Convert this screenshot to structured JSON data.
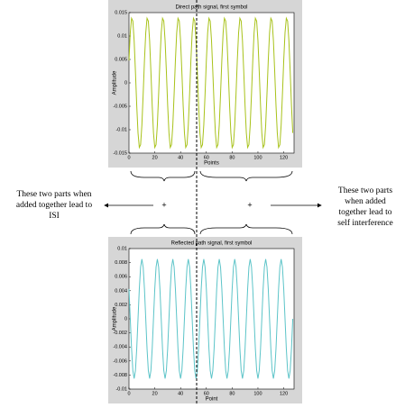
{
  "chart_data": [
    {
      "type": "line",
      "title": "Direct path signal, first symbol",
      "x_label": "Points",
      "y_label": "Amplitude",
      "xlim": [
        0,
        128
      ],
      "xticks": [
        0,
        20,
        40,
        60,
        80,
        100,
        120
      ],
      "ylim": [
        -0.015,
        0.015
      ],
      "yticks": [
        -0.015,
        -0.01,
        -0.005,
        0,
        0.005,
        0.01,
        0.015
      ],
      "x": [
        0,
        1,
        2,
        3,
        4,
        5,
        6,
        7,
        8,
        9,
        10,
        11,
        12,
        13,
        14,
        15,
        16,
        17,
        18,
        19,
        20,
        21,
        22,
        23,
        24,
        25,
        26,
        27,
        28,
        29,
        30,
        31,
        32,
        33,
        34,
        35,
        36,
        37,
        38,
        39,
        40,
        41,
        42,
        43,
        44,
        45,
        46,
        47,
        48,
        49,
        50,
        51,
        52,
        53,
        54,
        55,
        56,
        57,
        58,
        59,
        60,
        61,
        62,
        63,
        64,
        65,
        66,
        67,
        68,
        69,
        70,
        71,
        72,
        73,
        74,
        75,
        76,
        77,
        78,
        79,
        80,
        81,
        82,
        83,
        84,
        85,
        86,
        87,
        88,
        89,
        90,
        91,
        92,
        93,
        94,
        95,
        96,
        97,
        98,
        99,
        100,
        101,
        102,
        103,
        104,
        105,
        106,
        107,
        108,
        109,
        110,
        111,
        112,
        113,
        114,
        115,
        116,
        117,
        118,
        119,
        120,
        121,
        122,
        123,
        124,
        125,
        126,
        127
      ],
      "series": [
        {
          "color": "#a8c21a",
          "values": [
            0.0048,
            0.0107,
            0.0138,
            0.0132,
            0.009,
            0.0024,
            -0.0048,
            -0.0107,
            -0.0138,
            -0.0132,
            -0.009,
            -0.0024,
            0.0048,
            0.0107,
            0.0138,
            0.0132,
            0.009,
            0.0024,
            -0.0048,
            -0.0107,
            -0.0138,
            -0.0132,
            -0.009,
            -0.0024,
            0.0048,
            0.0107,
            0.0138,
            0.0132,
            0.009,
            0.0024,
            -0.0048,
            -0.0107,
            -0.0138,
            -0.0132,
            -0.009,
            -0.0024,
            0.0048,
            0.0107,
            0.0138,
            0.0132,
            0.009,
            0.0024,
            -0.0048,
            -0.0107,
            -0.0138,
            -0.0132,
            -0.009,
            -0.0024,
            0.0048,
            0.0107,
            0.0138,
            0.0132,
            0.009,
            0.0024,
            -0.0048,
            -0.0107,
            -0.0138,
            -0.0132,
            -0.009,
            -0.0024,
            0.0048,
            0.0107,
            0.0138,
            0.0132,
            0.009,
            0.0024,
            -0.0048,
            -0.0107,
            -0.0138,
            -0.0132,
            -0.009,
            -0.0024,
            0.0048,
            0.0107,
            0.0138,
            0.0132,
            0.009,
            0.0024,
            -0.0048,
            -0.0107,
            -0.0138,
            -0.0132,
            -0.009,
            -0.0024,
            0.0048,
            0.0107,
            0.0138,
            0.0132,
            0.009,
            0.0024,
            -0.0048,
            -0.0107,
            -0.0138,
            -0.0132,
            -0.009,
            -0.0024,
            0.0048,
            0.0107,
            0.0138,
            0.0132,
            0.009,
            0.0024,
            -0.0048,
            -0.0107,
            -0.0138,
            -0.0132,
            -0.009,
            -0.0024,
            0.0048,
            0.0107,
            0.0138,
            0.0132,
            0.009,
            0.0024,
            -0.0048,
            -0.0107,
            -0.0138,
            -0.0132,
            -0.009,
            -0.0024,
            0.0048,
            0.0107,
            0.0138,
            0.0132,
            0.009,
            0.0024,
            -0.0048,
            -0.0107
          ]
        }
      ]
    },
    {
      "type": "line",
      "title": "Reflected path signal, first symbol",
      "x_label": "Point",
      "y_label": "Amplitude",
      "xlim": [
        0,
        128
      ],
      "xticks": [
        0,
        20,
        40,
        60,
        80,
        100,
        120
      ],
      "ylim": [
        -0.01,
        0.01
      ],
      "yticks": [
        -0.01,
        -0.008,
        -0.006,
        -0.004,
        -0.002,
        0,
        0.002,
        0.004,
        0.006,
        0.008,
        0.01
      ],
      "x": [
        0,
        1,
        2,
        3,
        4,
        5,
        6,
        7,
        8,
        9,
        10,
        11,
        12,
        13,
        14,
        15,
        16,
        17,
        18,
        19,
        20,
        21,
        22,
        23,
        24,
        25,
        26,
        27,
        28,
        29,
        30,
        31,
        32,
        33,
        34,
        35,
        36,
        37,
        38,
        39,
        40,
        41,
        42,
        43,
        44,
        45,
        46,
        47,
        48,
        49,
        50,
        51,
        52,
        53,
        54,
        55,
        56,
        57,
        58,
        59,
        60,
        61,
        62,
        63,
        64,
        65,
        66,
        67,
        68,
        69,
        70,
        71,
        72,
        73,
        74,
        75,
        76,
        77,
        78,
        79,
        80,
        81,
        82,
        83,
        84,
        85,
        86,
        87,
        88,
        89,
        90,
        91,
        92,
        93,
        94,
        95,
        96,
        97,
        98,
        99,
        100,
        101,
        102,
        103,
        104,
        105,
        106,
        107,
        108,
        109,
        110,
        111,
        112,
        113,
        114,
        115,
        116,
        117,
        118,
        119,
        120,
        121,
        122,
        123,
        124,
        125,
        126,
        127
      ],
      "series": [
        {
          "color": "#5cc4c8",
          "values": [
            0.00425,
            0,
            -0.00425,
            -0.00736,
            -0.0085,
            -0.00736,
            -0.00425,
            0,
            0.00425,
            0.00736,
            0.0085,
            0.00736,
            0.00425,
            0,
            -0.00425,
            -0.00736,
            -0.0085,
            -0.00736,
            -0.00425,
            0,
            0.00425,
            0.00736,
            0.0085,
            0.00736,
            0.00425,
            0,
            -0.00425,
            -0.00736,
            -0.0085,
            -0.00736,
            -0.00425,
            0,
            0.00425,
            0.00736,
            0.0085,
            0.00736,
            0.00425,
            0,
            -0.00425,
            -0.00736,
            -0.0085,
            -0.00736,
            -0.00425,
            0,
            0.00425,
            0.00736,
            0.0085,
            0.00736,
            0.00425,
            0,
            -0.00425,
            -0.00736,
            -0.0085,
            -0.00736,
            -0.00425,
            0,
            0.00425,
            0.00736,
            0.0085,
            0.00736,
            0.00425,
            0,
            -0.00425,
            -0.00736,
            -0.0085,
            -0.00736,
            -0.00425,
            0,
            0.00425,
            0.00736,
            0.0085,
            0.00736,
            0.00425,
            0,
            -0.00425,
            -0.00736,
            -0.0085,
            -0.00736,
            -0.00425,
            0,
            0.00425,
            0.00736,
            0.0085,
            0.00736,
            0.00425,
            0,
            -0.00425,
            -0.00736,
            -0.0085,
            -0.00736,
            -0.00425,
            0,
            0.00425,
            0.00736,
            0.0085,
            0.00736,
            0.00425,
            0,
            -0.00425,
            -0.00736,
            -0.0085,
            -0.00736,
            -0.00425,
            0,
            0.00425,
            0.00736,
            0.0085,
            0.00736,
            0.00425,
            0,
            -0.00425,
            -0.00736,
            -0.0085,
            -0.00736,
            -0.00425,
            0,
            0.00425,
            0.00736,
            0.0085,
            0.00736,
            0.00425,
            0,
            -0.00425,
            -0.00736,
            -0.0085,
            -0.00736,
            -0.00425,
            0
          ]
        }
      ]
    }
  ],
  "annotations": {
    "left": [
      "These two parts when",
      "added together lead to",
      "ISI"
    ],
    "right": [
      "These two parts",
      "when added",
      "together lead to",
      "self interference"
    ],
    "plus_left": "+",
    "plus_right": "+"
  }
}
